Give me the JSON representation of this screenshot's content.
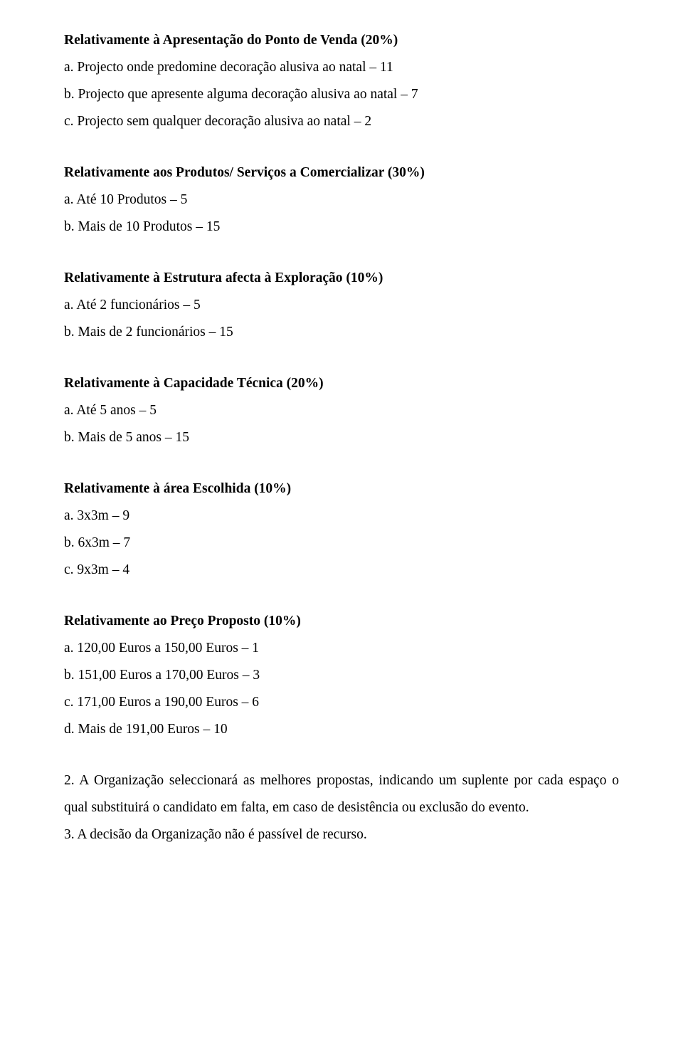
{
  "sections": {
    "s1": {
      "title": "Relativamente à Apresentação do Ponto de Venda (20%)",
      "a": "a. Projecto onde predomine decoração alusiva ao natal – 11",
      "b": "b. Projecto que apresente alguma decoração alusiva ao natal – 7",
      "c": "c. Projecto sem qualquer decoração alusiva ao natal – 2"
    },
    "s2": {
      "title": "Relativamente aos Produtos/ Serviços a Comercializar (30%)",
      "a": "a. Até 10 Produtos – 5",
      "b": "b. Mais de 10 Produtos – 15"
    },
    "s3": {
      "title": "Relativamente à Estrutura afecta à Exploração (10%)",
      "a": "a. Até 2 funcionários – 5",
      "b": "b. Mais de 2 funcionários – 15"
    },
    "s4": {
      "title": "Relativamente à Capacidade Técnica (20%)",
      "a": "a. Até 5 anos – 5",
      "b": "b. Mais de 5 anos – 15"
    },
    "s5": {
      "title": "Relativamente à área Escolhida (10%)",
      "a": "a. 3x3m – 9",
      "b": "b. 6x3m – 7",
      "c": "c. 9x3m – 4"
    },
    "s6": {
      "title": "Relativamente ao Preço Proposto (10%)",
      "a": "a. 120,00 Euros a 150,00 Euros – 1",
      "b": "b. 151,00 Euros a 170,00 Euros – 3",
      "c": "c. 171,00 Euros a 190,00 Euros – 6",
      "d": "d. Mais de 191,00 Euros – 10"
    }
  },
  "paragraphs": {
    "p2": "2. A Organização seleccionará as melhores propostas, indicando um suplente por cada espaço o qual substituirá o candidato em falta, em caso de desistência ou exclusão do evento.",
    "p3": "3. A decisão da Organização não é passível de recurso."
  }
}
